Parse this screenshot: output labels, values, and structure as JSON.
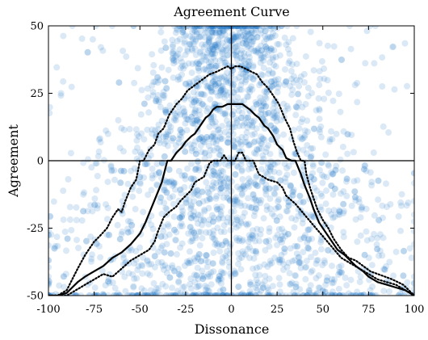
{
  "chart_data": {
    "type": "scatter",
    "title": "Agreement Curve",
    "xlabel": "Dissonance",
    "ylabel": "Agreement",
    "xlim": [
      -100,
      100
    ],
    "ylim": [
      -50,
      50
    ],
    "xticks": [
      -100,
      -75,
      -50,
      -25,
      0,
      25,
      50,
      75,
      100
    ],
    "yticks": [
      -50,
      -25,
      0,
      25,
      50
    ],
    "grid": false,
    "reference_lines": {
      "x": 0,
      "y": 0
    },
    "point_color": "#1f77c4",
    "series": [
      {
        "style": "dotted",
        "color": "#000000",
        "x": [
          -100,
          -95,
          -90,
          -87,
          -84,
          -80,
          -75,
          -72,
          -68,
          -65,
          -62,
          -60,
          -58,
          -55,
          -52,
          -50,
          -48,
          -45,
          -42,
          -40,
          -37,
          -34,
          -30,
          -27,
          -24,
          -20,
          -16,
          -12,
          -8,
          -5,
          -2,
          0,
          2,
          5,
          8,
          11,
          14,
          17,
          20,
          23,
          26,
          29,
          32,
          34,
          36,
          38,
          40,
          41,
          43,
          45,
          47,
          50,
          53,
          56,
          60,
          64,
          68,
          72,
          76,
          80,
          84,
          88,
          91,
          94,
          97,
          100
        ],
        "y": [
          -50,
          -50,
          -48,
          -44,
          -40,
          -35,
          -30,
          -28,
          -25,
          -21,
          -18,
          -19,
          -15,
          -10,
          -7,
          0,
          0,
          4,
          6,
          10,
          12,
          17,
          21,
          23,
          26,
          28,
          30,
          32,
          33,
          34,
          35,
          34,
          35,
          35,
          34,
          33,
          32,
          29,
          27,
          24,
          21,
          16,
          12,
          7,
          3,
          0,
          0,
          -5,
          -10,
          -14,
          -18,
          -22,
          -25,
          -29,
          -33,
          -36,
          -37,
          -39,
          -41,
          -42,
          -43,
          -44,
          -45,
          -46,
          -48,
          -50
        ]
      },
      {
        "style": "solid",
        "color": "#000000",
        "x": [
          -100,
          -95,
          -90,
          -87,
          -84,
          -80,
          -75,
          -70,
          -65,
          -60,
          -55,
          -50,
          -47,
          -44,
          -41,
          -38,
          -35,
          -33,
          -30,
          -27,
          -25,
          -22,
          -20,
          -17,
          -14,
          -12,
          -10,
          -8,
          -5,
          -2,
          0,
          3,
          6,
          8,
          10,
          13,
          15,
          18,
          20,
          23,
          25,
          28,
          30,
          33,
          35,
          38,
          40,
          43,
          45,
          48,
          52,
          55,
          58,
          62,
          65,
          68,
          72,
          75,
          80,
          85,
          90,
          95,
          100
        ],
        "y": [
          -50,
          -50,
          -49,
          -47,
          -45,
          -43,
          -41,
          -39,
          -36,
          -34,
          -31,
          -27,
          -23,
          -18,
          -13,
          -8,
          0,
          0,
          3,
          5,
          7,
          9,
          10,
          13,
          16,
          17,
          19,
          20,
          20,
          21,
          21,
          21,
          21,
          20,
          19,
          17,
          16,
          13,
          12,
          9,
          6,
          4,
          1,
          0,
          0,
          -5,
          -9,
          -14,
          -18,
          -23,
          -27,
          -30,
          -33,
          -35,
          -37,
          -39,
          -41,
          -43,
          -45,
          -46,
          -47,
          -48,
          -50
        ]
      },
      {
        "style": "dotted",
        "color": "#000000",
        "x": [
          -100,
          -95,
          -90,
          -85,
          -80,
          -75,
          -70,
          -65,
          -60,
          -55,
          -50,
          -45,
          -42,
          -40,
          -37,
          -34,
          -30,
          -28,
          -25,
          -22,
          -20,
          -15,
          -12,
          -10,
          -8,
          -6,
          -4,
          -2,
          0,
          2,
          4,
          6,
          8,
          10,
          12,
          15,
          20,
          25,
          28,
          30,
          35,
          40,
          45,
          50,
          55,
          60,
          65,
          70,
          75,
          80,
          85,
          90,
          95,
          100
        ],
        "y": [
          -50,
          -50,
          -50,
          -48,
          -46,
          -44,
          -42,
          -43,
          -40,
          -37,
          -35,
          -33,
          -30,
          -26,
          -21,
          -19,
          -17,
          -15,
          -13,
          -11,
          -8,
          -6,
          -1,
          0,
          0,
          0,
          2,
          0,
          0,
          0,
          3,
          3,
          0,
          0,
          0,
          -5,
          -7,
          -8,
          -10,
          -13,
          -16,
          -20,
          -24,
          -28,
          -32,
          -36,
          -38,
          -40,
          -42,
          -44,
          -45,
          -46,
          -48,
          -50
        ]
      }
    ]
  }
}
